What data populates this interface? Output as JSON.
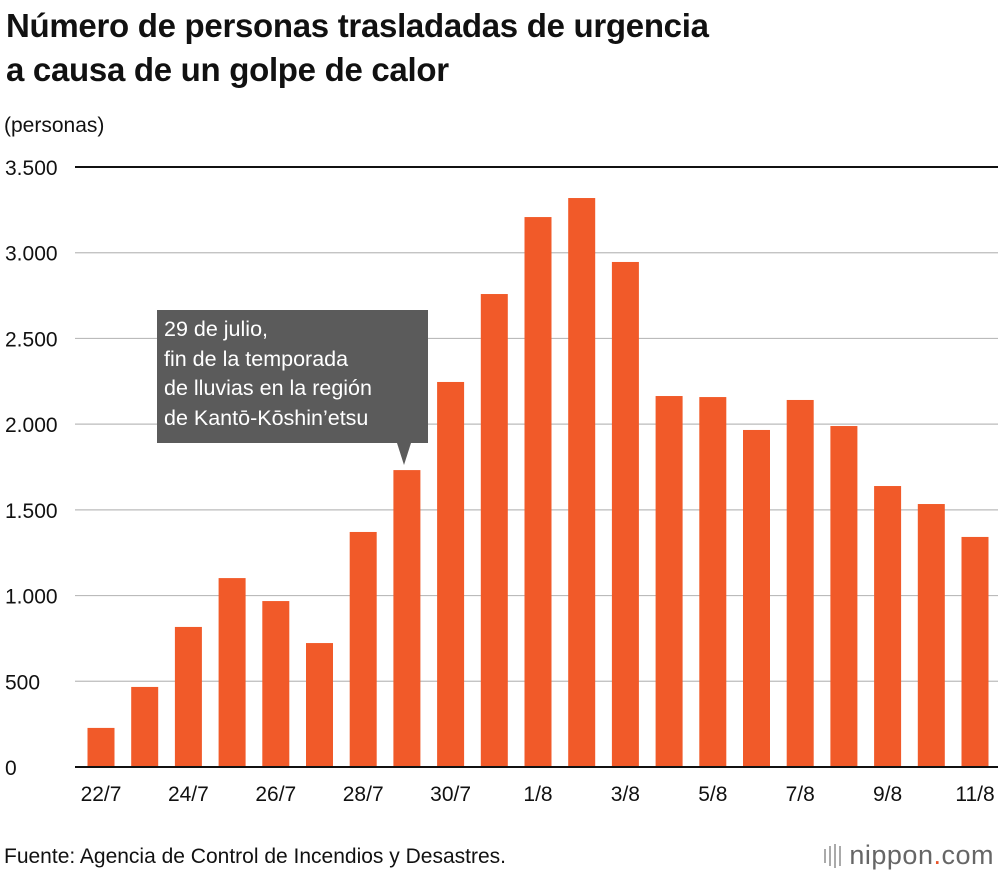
{
  "chart_data": {
    "type": "bar",
    "title": "Número de personas trasladadas de urgencia a causa de un golpe de calor",
    "title_lines": [
      "Número de personas trasladadas de urgencia",
      "a causa de un golpe de calor"
    ],
    "ylabel": "(personas)",
    "xlabel": "",
    "ylim": [
      0,
      3500
    ],
    "yticks": [
      0,
      500,
      1000,
      1500,
      2000,
      2500,
      3000,
      3500
    ],
    "ytick_labels": [
      "0",
      "500",
      "1.000",
      "1.500",
      "2.000",
      "2.500",
      "3.000",
      "3.500"
    ],
    "categories": [
      "22/7",
      "23/7",
      "24/7",
      "25/7",
      "26/7",
      "27/7",
      "28/7",
      "29/7",
      "30/7",
      "31/7",
      "1/8",
      "2/8",
      "3/8",
      "4/8",
      "5/8",
      "6/8",
      "7/8",
      "8/8",
      "9/8",
      "10/8",
      "11/8"
    ],
    "xtick_labels": [
      "22/7",
      "24/7",
      "26/7",
      "28/7",
      "30/7",
      "1/8",
      "3/8",
      "5/8",
      "7/8",
      "9/8",
      "11/8"
    ],
    "values": [
      228,
      467,
      817,
      1102,
      968,
      723,
      1371,
      1732,
      2246,
      2759,
      3208,
      3319,
      2946,
      2164,
      2158,
      1966,
      2141,
      1989,
      1639,
      1534,
      1342
    ],
    "bar_color": "#f15a29",
    "grid": true,
    "annotation": {
      "category": "29/7",
      "lines": [
        "29 de julio,",
        "fin de la temporada",
        "de lluvias en la región",
        "de Kantō-Kōshin’etsu"
      ]
    }
  },
  "footer": {
    "source": "Fuente: Agencia de Control de Incendios y Desastres.",
    "logo_name": "nippon",
    "logo_dot": ".",
    "logo_tld": "com"
  }
}
